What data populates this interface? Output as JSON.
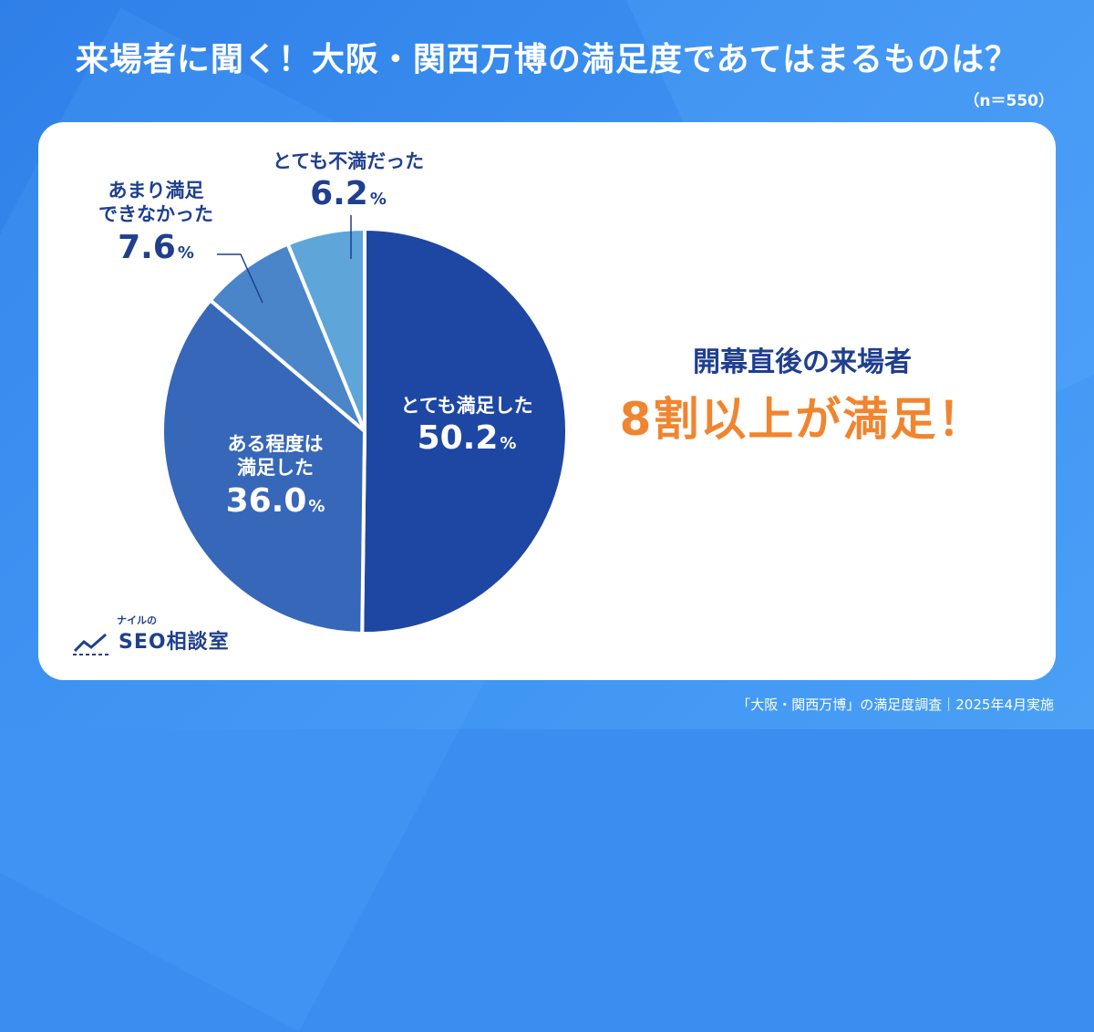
{
  "title": "来場者に聞く！大阪・関西万博の満足度であてはまるものは？",
  "sample": "（n＝550）",
  "chart_data": {
    "type": "pie",
    "title": "来場者に聞く！大阪・関西万博の満足度であてはまるものは？",
    "slices": [
      {
        "label": "とても満足した",
        "value": 50.2,
        "pct_text": "50.2",
        "color": "#1e47a3"
      },
      {
        "label": "ある程度は満足した",
        "value": 36.0,
        "pct_text": "36.0",
        "color": "#3667b8"
      },
      {
        "label": "あまり満足できなかった",
        "value": 7.6,
        "pct_text": "7.6",
        "color": "#4a84c9"
      },
      {
        "label": "とても不満だった",
        "value": 6.2,
        "pct_text": "6.2",
        "color": "#5ea5d9"
      }
    ],
    "label_lines": {
      "s0": [
        "とても満足した"
      ],
      "s1": [
        "ある程度は",
        "満足した"
      ],
      "s2": [
        "あまり満足",
        "できなかった"
      ],
      "s3": [
        "とても不満だった"
      ]
    },
    "unit": "%"
  },
  "callout": {
    "line1": "開幕直後の来場者",
    "line2": "8割以上が満足！"
  },
  "logo": {
    "small": "ナイルの",
    "main": "SEO相談室"
  },
  "source": "「大阪・関西万博」の満足度調査｜2025年4月実施"
}
